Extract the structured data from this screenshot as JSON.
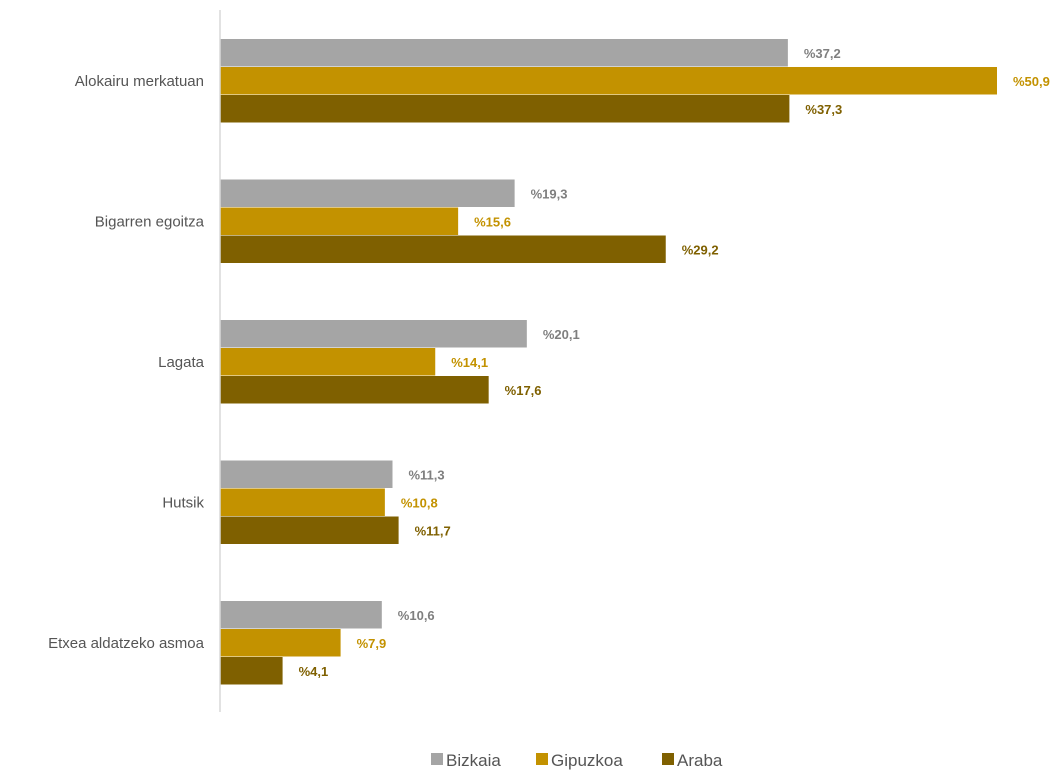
{
  "chart_data": {
    "type": "bar",
    "orientation": "horizontal",
    "categories": [
      "Alokairu merkatuan",
      "Bigarren egoitza",
      "Lagata",
      "Hutsik",
      "Etxea aldatzeko asmoa"
    ],
    "series": [
      {
        "name": "Bizkaia",
        "color": "#a5a5a5",
        "values": [
          37.2,
          19.3,
          20.1,
          11.3,
          10.6
        ],
        "labels": [
          "%37,2",
          "%19,3",
          "%20,1",
          "%11,3",
          "%10,6"
        ]
      },
      {
        "name": "Gipuzkoa",
        "color": "#c39200",
        "values": [
          50.9,
          15.6,
          14.1,
          10.8,
          7.9
        ],
        "labels": [
          "%50,9",
          "%15,6",
          "%14,1",
          "%10,8",
          "%7,9"
        ]
      },
      {
        "name": "Araba",
        "color": "#7f6000",
        "values": [
          37.3,
          29.2,
          17.6,
          11.7,
          4.1
        ],
        "labels": [
          "%37,3",
          "%29,2",
          "%17,6",
          "%11,7",
          "%4,1"
        ]
      }
    ],
    "title": "",
    "xlabel": "",
    "ylabel": "",
    "xlim": [
      0,
      50.9
    ],
    "grid": false,
    "legend": "bottom"
  }
}
